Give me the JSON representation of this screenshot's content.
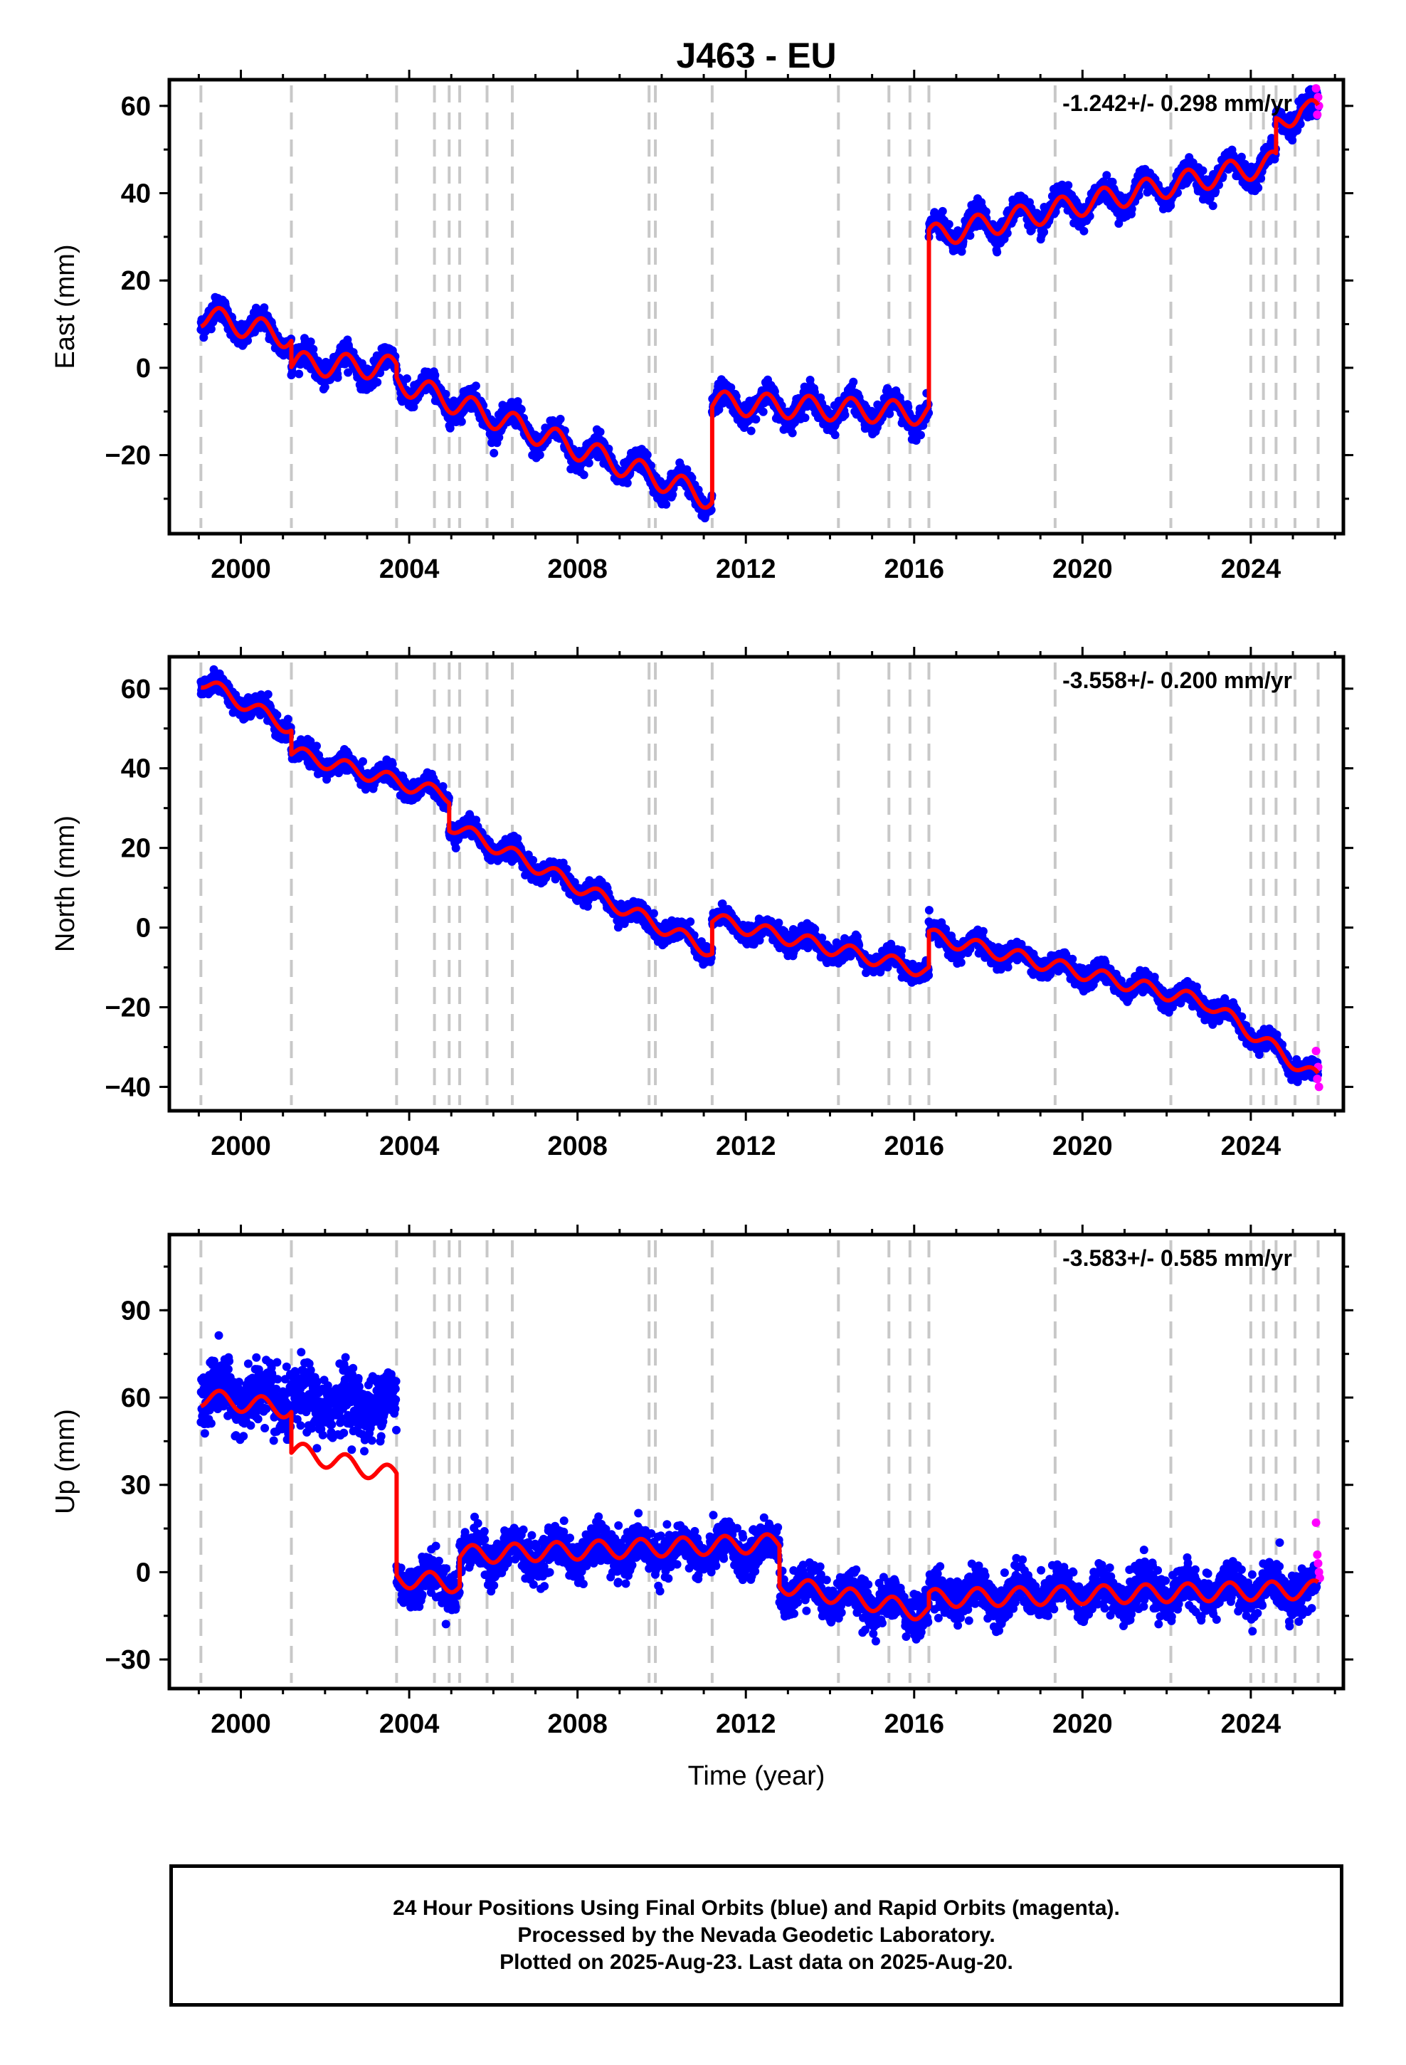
{
  "title": "J463 - EU",
  "xlabel": "Time (year)",
  "colors": {
    "final": "#0000ff",
    "rapid": "#ff00ff",
    "model": "#ff0000",
    "step": "#c8c8c8"
  },
  "steps": [
    1999.05,
    2001.2,
    2003.7,
    2004.6,
    2004.95,
    2005.2,
    2005.85,
    2006.45,
    2009.7,
    2009.85,
    2011.2,
    2014.2,
    2015.4,
    2015.9,
    2016.35,
    2019.35,
    2022.1,
    2024.0,
    2024.3,
    2024.6,
    2025.05,
    2025.6
  ],
  "caption": {
    "line1": "24 Hour Positions Using Final Orbits (blue) and Rapid Orbits (magenta).",
    "line2": "Processed by the Nevada Geodetic Laboratory.",
    "line3": "Plotted on 2025-Aug-23. Last data on 2025-Aug-20."
  },
  "chart_data": [
    {
      "type": "scatter",
      "ylabel": "East (mm)",
      "rate": "-1.242+/- 0.298 mm/yr",
      "xlim": [
        1998.3,
        2026.2
      ],
      "ylim": [
        -38,
        66
      ],
      "xticks": [
        2000,
        2004,
        2008,
        2012,
        2016,
        2020,
        2024
      ],
      "yticks": [
        -20,
        0,
        20,
        40,
        60
      ],
      "series": [
        {
          "name": "Final Orbits",
          "segments": [
            [
              [
                1999.05,
                12
              ],
              [
                2001.2,
                7
              ]
            ],
            [
              [
                2001.2,
                1
              ],
              [
                2003.7,
                0
              ]
            ],
            [
              [
                2003.7,
                -3
              ],
              [
                2011.2,
                -30
              ]
            ],
            [
              [
                2011.2,
                -8
              ],
              [
                2016.35,
                -10.5
              ]
            ],
            [
              [
                2016.35,
                30
              ],
              [
                2024.6,
                47
              ]
            ],
            [
              [
                2024.6,
                55
              ],
              [
                2025.2,
                60
              ],
              [
                2025.6,
                58
              ]
            ]
          ]
        },
        {
          "name": "Rapid Orbits",
          "x": [
            2025.55,
            2025.58,
            2025.6,
            2025.62
          ],
          "y": [
            64,
            58,
            62,
            60
          ]
        }
      ]
    },
    {
      "type": "scatter",
      "ylabel": "North (mm)",
      "rate": "-3.558+/- 0.200 mm/yr",
      "xlim": [
        1998.3,
        2026.2
      ],
      "ylim": [
        -46,
        68
      ],
      "xticks": [
        2000,
        2004,
        2008,
        2012,
        2016,
        2020,
        2024
      ],
      "yticks": [
        -40,
        -20,
        0,
        20,
        40,
        60
      ],
      "series": [
        {
          "name": "Final Orbits",
          "segments": [
            [
              [
                1999.05,
                62
              ],
              [
                2001.2,
                50
              ]
            ],
            [
              [
                2001.2,
                44
              ],
              [
                2004.95,
                33
              ]
            ],
            [
              [
                2004.95,
                26
              ],
              [
                2011.2,
                -6
              ]
            ],
            [
              [
                2011.2,
                2
              ],
              [
                2016.35,
                -11
              ]
            ],
            [
              [
                2016.35,
                -2
              ],
              [
                2023.0,
                -19
              ],
              [
                2025.6,
                -38
              ]
            ]
          ]
        },
        {
          "name": "Rapid Orbits",
          "x": [
            2025.55,
            2025.58,
            2025.6,
            2025.62
          ],
          "y": [
            -31,
            -38,
            -35,
            -40
          ]
        }
      ]
    },
    {
      "type": "scatter",
      "ylabel": "Up (mm)",
      "rate": "-3.583+/- 0.585 mm/yr",
      "xlim": [
        1998.3,
        2026.2
      ],
      "ylim": [
        -40,
        116
      ],
      "xticks": [
        2000,
        2004,
        2008,
        2012,
        2016,
        2020,
        2024
      ],
      "yticks": [
        -30,
        0,
        30,
        60,
        90
      ],
      "series": [
        {
          "name": "Final Orbits",
          "segments": [
            [
              [
                1999.05,
                62
              ],
              [
                2001.2,
                58
              ]
            ],
            [
              [
                2001.2,
                58
              ],
              [
                2003.7,
                58
              ]
            ],
            [
              [
                2003.7,
                -2
              ],
              [
                2005.2,
                -4
              ]
            ],
            [
              [
                2005.2,
                6
              ],
              [
                2012.8,
                8
              ]
            ],
            [
              [
                2012.8,
                -4
              ],
              [
                2016.35,
                -14
              ]
            ],
            [
              [
                2016.35,
                -8
              ],
              [
                2025.6,
                -6
              ]
            ]
          ]
        },
        {
          "name": "Rapid Orbits",
          "x": [
            2025.55,
            2025.58,
            2025.6,
            2025.62,
            2025.64
          ],
          "y": [
            17,
            6,
            3,
            0,
            -2
          ]
        }
      ],
      "model_override": [
        [
          [
            1999.05,
            60
          ],
          [
            2001.2,
            56
          ]
        ],
        [
          [
            2001.2,
            42
          ],
          [
            2003.7,
            33
          ]
        ],
        [
          [
            2003.7,
            -2
          ],
          [
            2005.2,
            -4
          ]
        ],
        [
          [
            2005.2,
            6
          ],
          [
            2012.8,
            10
          ]
        ],
        [
          [
            2012.8,
            -4
          ],
          [
            2016.35,
            -14
          ]
        ],
        [
          [
            2016.35,
            -9
          ],
          [
            2025.6,
            -6
          ]
        ]
      ]
    }
  ]
}
